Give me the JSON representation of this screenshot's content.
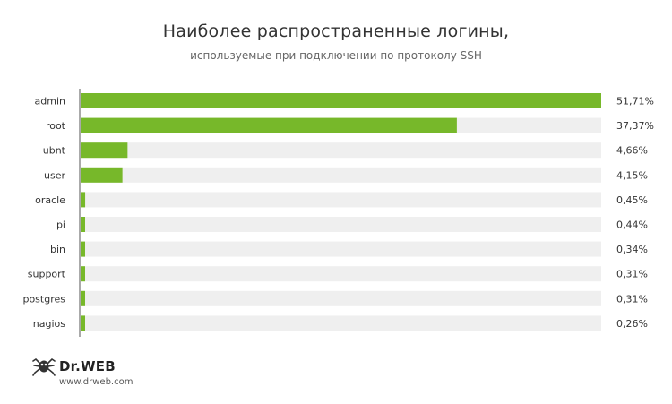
{
  "header": {
    "title": "Наиболее распространенные логины,",
    "subtitle": "используемые при подключении по протоколу SSH"
  },
  "chart_data": {
    "type": "bar",
    "orientation": "horizontal",
    "categories": [
      "admin",
      "root",
      "ubnt",
      "user",
      "oracle",
      "pi",
      "bin",
      "support",
      "postgres",
      "nagios"
    ],
    "values": [
      51.71,
      37.37,
      4.66,
      4.15,
      0.45,
      0.44,
      0.34,
      0.31,
      0.31,
      0.26
    ],
    "value_labels": [
      "51,71%",
      "37,37%",
      "4,66%",
      "4,15%",
      "0,45%",
      "0,44%",
      "0,34%",
      "0,31%",
      "0,31%",
      "0,26%"
    ],
    "title": "Наиболее распространенные логины,",
    "subtitle": "используемые при подключении по протоколу SSH",
    "xlim": [
      0,
      51.71
    ],
    "grid": false,
    "bar_color": "#77b82a",
    "track_color": "#efefef"
  },
  "footer": {
    "brand": "Dr.WEB",
    "url": "www.drweb.com"
  }
}
